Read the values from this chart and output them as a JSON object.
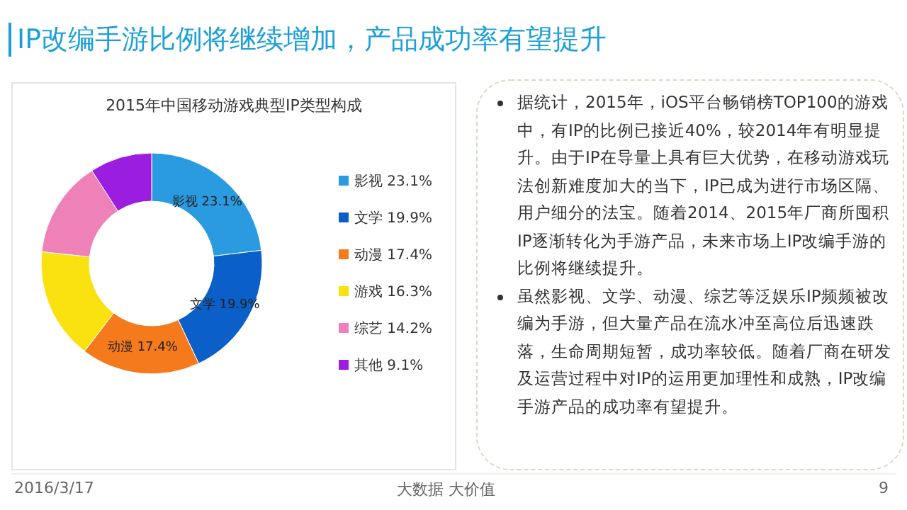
{
  "chart_data": [
    {
      "type": "donut",
      "title": "2015年中国移动游戏典型IP类型构成",
      "categories": [
        "影视 23.1%",
        "文学 19.9%",
        "动漫 17.4%",
        "游戏 16.3%",
        "综艺 14.2%",
        "其他 9.1%"
      ],
      "values": [
        23.1,
        19.9,
        17.4,
        16.3,
        14.2,
        9.1
      ],
      "colors": [
        "#2a9be0",
        "#0a5fc8",
        "#f47a1c",
        "#f9e20f",
        "#ee82b8",
        "#9b1ee0"
      ],
      "value_labels": [
        "影视 23.1%",
        "文学 19.9%",
        "动漫 17.4%",
        null,
        null,
        null
      ],
      "legend": "right"
    },
    {
      "type": "other",
      "title": "IP改编手游比例将继续增加，产品成功率有望提升",
      "annotations": [
        "据统计，2015年，iOS平台畅销榜TOP100的游戏中，有IP的比例已接近40%，较2014年有明显提升。由于IP在导量上具有巨大优势，在移动游戏玩法创新难度加大的当下，IP已成为进行市场区隔、用户细分的法宝。随着2014、2015年厂商所囤积IP逐渐转化为手游产品，未来市场上IP改编手游的比例将继续提升。",
        "虽然影视、文学、动漫、综艺等泛娱乐IP频频被改编为手游，但大量产品在流水冲至高位后迅速跌落，生命周期短暂，成功率较低。随着厂商在研发及运营过程中对IP的运用更加理性和成熟，IP改编手游产品的成功率有望提升。",
        "2016/3/17",
        "大数据 大价值",
        "9"
      ]
    }
  ]
}
